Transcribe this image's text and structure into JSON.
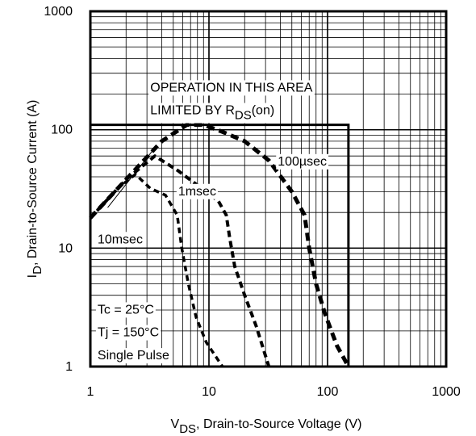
{
  "chart_data": {
    "type": "line",
    "title": "",
    "xlabel": {
      "main": "V",
      "sub": "DS",
      "rest": ", Drain-to-Source Voltage (V)"
    },
    "ylabel": {
      "main": "I",
      "sub": "D",
      "rest": ",  Drain-to-Source Current (A)"
    },
    "x_scale": "log",
    "y_scale": "log",
    "xlim": [
      1,
      1000
    ],
    "ylim": [
      1,
      1000
    ],
    "x_ticks": [
      {
        "value": 1,
        "label": "1"
      },
      {
        "value": 10,
        "label": "10"
      },
      {
        "value": 100,
        "label": "100"
      },
      {
        "value": 1000,
        "label": "1000"
      }
    ],
    "y_ticks": [
      {
        "value": 1,
        "label": "1"
      },
      {
        "value": 10,
        "label": "10"
      },
      {
        "value": 100,
        "label": "100"
      },
      {
        "value": 1000,
        "label": "1000"
      }
    ],
    "grid": true,
    "boundary": {
      "name": "",
      "points": [
        [
          1,
          110
        ],
        [
          150,
          110
        ],
        [
          150,
          1
        ]
      ]
    },
    "rds_limit_pointer": {
      "from": [
        1.4,
        22
      ],
      "to": [
        3.6,
        73
      ]
    },
    "series": [
      {
        "label": "100µsec",
        "points": [
          [
            1,
            18
          ],
          [
            2,
            38
          ],
          [
            4,
            80
          ],
          [
            6.5,
            110
          ],
          [
            9,
            110
          ],
          [
            13,
            96
          ],
          [
            20,
            80
          ],
          [
            32,
            55
          ],
          [
            50,
            30
          ],
          [
            64,
            19
          ],
          [
            70,
            10
          ],
          [
            80,
            5
          ],
          [
            95,
            2.8
          ],
          [
            120,
            1.5
          ],
          [
            150,
            1
          ]
        ]
      },
      {
        "label": "1msec",
        "points": [
          [
            1,
            18
          ],
          [
            2,
            38
          ],
          [
            3.5,
            60
          ],
          [
            5.5,
            45
          ],
          [
            8,
            34
          ],
          [
            12,
            25
          ],
          [
            14,
            19
          ],
          [
            15,
            12
          ],
          [
            16.5,
            7
          ],
          [
            20,
            4
          ],
          [
            25,
            2.2
          ],
          [
            32,
            1
          ]
        ]
      },
      {
        "label": "10msec",
        "points": [
          [
            1,
            18
          ],
          [
            1.7,
            32
          ],
          [
            2.4,
            42
          ],
          [
            3.2,
            32
          ],
          [
            4.3,
            28
          ],
          [
            5.4,
            19
          ],
          [
            5.9,
            10
          ],
          [
            6.7,
            5
          ],
          [
            7.8,
            2.6
          ],
          [
            9.5,
            1.6
          ],
          [
            13,
            1
          ]
        ]
      }
    ],
    "annotations": [
      {
        "key": "rds_line1",
        "text": "OPERATION IN THIS AREA",
        "x": 3.2,
        "y": 210
      },
      {
        "key": "rds_line2",
        "text": "LIMITED BY R",
        "sub": "DS",
        "tail": "(on)",
        "x": 3.2,
        "y": 135
      },
      {
        "key": "lbl_100us",
        "text": "100µsec",
        "x": 38,
        "y": 50
      },
      {
        "key": "lbl_1ms",
        "text": "1msec",
        "x": 5.5,
        "y": 28
      },
      {
        "key": "lbl_10ms",
        "text": "10msec",
        "x": 1.15,
        "y": 11
      },
      {
        "key": "cond1",
        "text": "Tc = 25°C",
        "x": 1.15,
        "y": 2.8
      },
      {
        "key": "cond2",
        "text": "Tj = 150°C",
        "x": 1.15,
        "y": 1.8
      },
      {
        "key": "cond3",
        "text": "Single Pulse",
        "x": 1.15,
        "y": 1.15
      }
    ]
  }
}
